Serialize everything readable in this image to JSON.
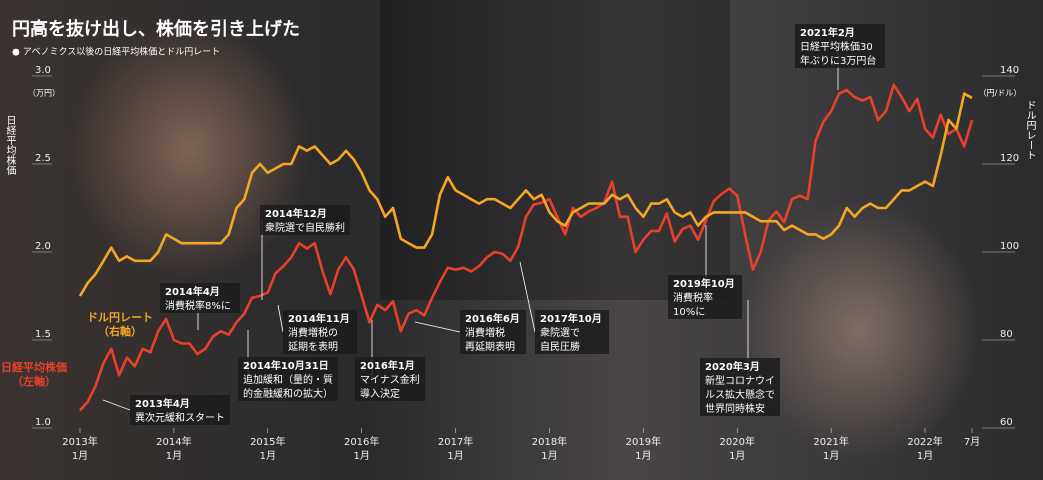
{
  "chart_data": {
    "type": "line",
    "title": "円高を抜け出し、株価を引き上げた",
    "subtitle": "● アベノミクス以後の日経平均株価とドル円レート",
    "y_title": "日経平均株価",
    "y_unit": "（万円）",
    "y2_title": "ドル円レート",
    "y2_unit": "（円/ドル）",
    "x": [
      "2013-01",
      "2013-02",
      "2013-03",
      "2013-04",
      "2013-05",
      "2013-06",
      "2013-07",
      "2013-08",
      "2013-09",
      "2013-10",
      "2013-11",
      "2013-12",
      "2014-01",
      "2014-02",
      "2014-03",
      "2014-04",
      "2014-05",
      "2014-06",
      "2014-07",
      "2014-08",
      "2014-09",
      "2014-10",
      "2014-11",
      "2014-12",
      "2015-01",
      "2015-02",
      "2015-03",
      "2015-04",
      "2015-05",
      "2015-06",
      "2015-07",
      "2015-08",
      "2015-09",
      "2015-10",
      "2015-11",
      "2015-12",
      "2016-01",
      "2016-02",
      "2016-03",
      "2016-04",
      "2016-05",
      "2016-06",
      "2016-07",
      "2016-08",
      "2016-09",
      "2016-10",
      "2016-11",
      "2016-12",
      "2017-01",
      "2017-02",
      "2017-03",
      "2017-04",
      "2017-05",
      "2017-06",
      "2017-07",
      "2017-08",
      "2017-09",
      "2017-10",
      "2017-11",
      "2017-12",
      "2018-01",
      "2018-02",
      "2018-03",
      "2018-04",
      "2018-05",
      "2018-06",
      "2018-07",
      "2018-08",
      "2018-09",
      "2018-10",
      "2018-11",
      "2018-12",
      "2019-01",
      "2019-02",
      "2019-03",
      "2019-04",
      "2019-05",
      "2019-06",
      "2019-07",
      "2019-08",
      "2019-09",
      "2019-10",
      "2019-11",
      "2019-12",
      "2020-01",
      "2020-02",
      "2020-03",
      "2020-04",
      "2020-05",
      "2020-06",
      "2020-07",
      "2020-08",
      "2020-09",
      "2020-10",
      "2020-11",
      "2020-12",
      "2021-01",
      "2021-02",
      "2021-03",
      "2021-04",
      "2021-05",
      "2021-06",
      "2021-07",
      "2021-08",
      "2021-09",
      "2021-10",
      "2021-11",
      "2021-12",
      "2022-01",
      "2022-02",
      "2022-03",
      "2022-04",
      "2022-05",
      "2022-06",
      "2022-07"
    ],
    "series": [
      {
        "name": "日経平均株価",
        "axis_note": "（左軸）",
        "color": "#e8412a",
        "axis": "y",
        "values": [
          1.1,
          1.15,
          1.24,
          1.37,
          1.45,
          1.3,
          1.4,
          1.35,
          1.45,
          1.43,
          1.55,
          1.62,
          1.5,
          1.48,
          1.48,
          1.42,
          1.45,
          1.52,
          1.55,
          1.53,
          1.6,
          1.65,
          1.74,
          1.75,
          1.77,
          1.88,
          1.92,
          1.97,
          2.05,
          2.02,
          2.05,
          1.89,
          1.76,
          1.9,
          1.97,
          1.9,
          1.75,
          1.6,
          1.7,
          1.67,
          1.72,
          1.55,
          1.65,
          1.67,
          1.64,
          1.74,
          1.83,
          1.91,
          1.9,
          1.91,
          1.89,
          1.92,
          1.97,
          2.0,
          1.99,
          1.95,
          2.03,
          2.2,
          2.27,
          2.28,
          2.3,
          2.2,
          2.1,
          2.25,
          2.2,
          2.23,
          2.25,
          2.28,
          2.4,
          2.2,
          2.2,
          2.0,
          2.07,
          2.12,
          2.12,
          2.22,
          2.06,
          2.13,
          2.15,
          2.07,
          2.18,
          2.29,
          2.33,
          2.36,
          2.32,
          2.1,
          1.9,
          2.0,
          2.18,
          2.23,
          2.17,
          2.3,
          2.32,
          2.3,
          2.63,
          2.74,
          2.8,
          2.9,
          2.92,
          2.88,
          2.86,
          2.88,
          2.75,
          2.8,
          2.95,
          2.88,
          2.8,
          2.87,
          2.7,
          2.65,
          2.78,
          2.67,
          2.7,
          2.6,
          2.75
        ]
      },
      {
        "name": "ドル円レート",
        "axis_note": "（右軸）",
        "color": "#f5a623",
        "axis": "y2",
        "values": [
          90,
          93,
          95,
          98,
          101,
          98,
          99,
          98,
          98,
          98,
          100,
          104,
          103,
          102,
          102,
          102,
          102,
          102,
          102,
          104,
          110,
          112,
          118,
          120,
          118,
          119,
          120,
          120,
          124,
          123,
          124,
          122,
          120,
          121,
          123,
          121,
          118,
          114,
          112,
          108,
          110,
          103,
          102,
          101,
          101,
          104,
          113,
          117,
          114,
          113,
          112,
          111,
          112,
          112,
          111,
          110,
          112,
          114,
          112,
          113,
          109,
          107,
          106,
          109,
          110,
          111,
          111,
          111,
          113,
          112,
          113,
          110,
          108,
          111,
          111,
          112,
          109,
          108,
          109,
          106,
          108,
          109,
          109,
          109,
          109,
          109,
          108,
          107,
          107,
          107,
          105,
          106,
          105,
          104,
          104,
          103,
          104,
          106,
          110,
          108,
          110,
          111,
          110,
          110,
          112,
          114,
          114,
          115,
          116,
          115,
          122,
          130,
          128,
          136,
          135
        ]
      }
    ],
    "ylim": [
      1,
      3
    ],
    "yticks": [
      {
        "value": 1,
        "label": "1.0"
      },
      1.5,
      {
        "value": 2,
        "label": "2.0"
      },
      2.5,
      {
        "value": 3,
        "label": "3.0"
      }
    ],
    "y2lim": [
      60,
      140
    ],
    "y2ticks": [
      60,
      80,
      100,
      120,
      140
    ],
    "xticks": [
      {
        "value": "2013-01",
        "label": "2013年\n1月"
      },
      {
        "value": "2014-01",
        "label": "2014年\n1月"
      },
      {
        "value": "2015-01",
        "label": "2015年\n1月"
      },
      {
        "value": "2016-01",
        "label": "2016年\n1月"
      },
      {
        "value": "2017-01",
        "label": "2017年\n1月"
      },
      {
        "value": "2018-01",
        "label": "2018年\n1月"
      },
      {
        "value": "2019-01",
        "label": "2019年\n1月"
      },
      {
        "value": "2020-01",
        "label": "2020年\n1月"
      },
      {
        "value": "2021-01",
        "label": "2021年\n1月"
      },
      {
        "value": "2022-01",
        "label": "2022年\n1月"
      },
      {
        "value": "2022-07",
        "label": "7月"
      }
    ],
    "annotations": [
      {
        "title": "2013年4月",
        "lines": [
          "異次元緩和スタート"
        ]
      },
      {
        "title": "2014年4月",
        "lines": [
          "消費税率8%に"
        ]
      },
      {
        "title": "2014年12月",
        "lines": [
          "衆院選で自民勝利"
        ]
      },
      {
        "title": "2014年11月",
        "lines": [
          "消費増税の",
          "延期を表明"
        ]
      },
      {
        "title": "2014年10月31日",
        "lines": [
          "追加緩和（量的・質",
          "的金融緩和の拡大）"
        ]
      },
      {
        "title": "2016年1月",
        "lines": [
          "マイナス金利",
          "導入決定"
        ]
      },
      {
        "title": "2016年6月",
        "lines": [
          "消費増税",
          "再延期表明"
        ]
      },
      {
        "title": "2017年10月",
        "lines": [
          "衆院選で",
          "自民圧勝"
        ]
      },
      {
        "title": "2019年10月",
        "lines": [
          "消費税率",
          "10%に"
        ]
      },
      {
        "title": "2020年3月",
        "lines": [
          "新型コロナウイ",
          "ルス拡大懸念で",
          "世界同時株安"
        ]
      },
      {
        "title": "2021年2月",
        "lines": [
          "日経平均株価30",
          "年ぶりに3万円台"
        ]
      }
    ]
  }
}
